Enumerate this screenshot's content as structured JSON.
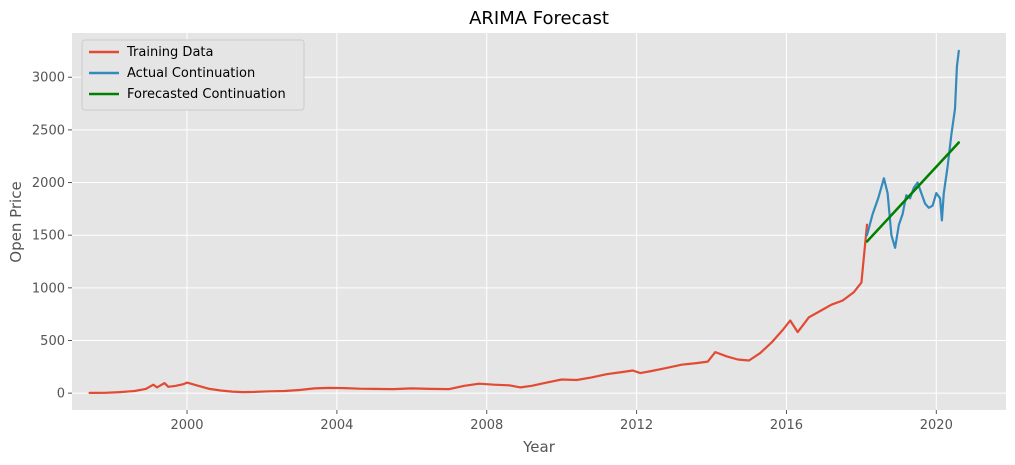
{
  "chart_data": {
    "type": "line",
    "title": "ARIMA Forecast",
    "xlabel": "Year",
    "ylabel": "Open Price",
    "xlim": [
      1996.93,
      2021.86
    ],
    "ylim": [
      -160,
      3420
    ],
    "x_ticks": [
      2000,
      2004,
      2008,
      2012,
      2016,
      2020
    ],
    "y_ticks": [
      0,
      500,
      1000,
      1500,
      2000,
      2500,
      3000
    ],
    "grid": true,
    "legend_position": "upper-left",
    "series": [
      {
        "name": "Training Data",
        "color": "#E24A33",
        "x": [
          1997.4,
          1997.8,
          1998.2,
          1998.6,
          1998.9,
          1999.1,
          1999.2,
          1999.4,
          1999.5,
          1999.7,
          1999.9,
          2000.0,
          2000.3,
          2000.6,
          2000.9,
          2001.2,
          2001.5,
          2001.8,
          2002.2,
          2002.6,
          2003.0,
          2003.4,
          2003.8,
          2004.2,
          2004.6,
          2005.0,
          2005.5,
          2006.0,
          2006.5,
          2007.0,
          2007.4,
          2007.8,
          2008.2,
          2008.6,
          2008.9,
          2009.2,
          2009.6,
          2010.0,
          2010.4,
          2010.8,
          2011.2,
          2011.6,
          2011.9,
          2012.1,
          2012.4,
          2012.8,
          2013.2,
          2013.6,
          2013.9,
          2014.1,
          2014.4,
          2014.7,
          2015.0,
          2015.3,
          2015.6,
          2015.9,
          2016.1,
          2016.3,
          2016.6,
          2016.9,
          2017.2,
          2017.5,
          2017.8,
          2018.0,
          2018.15
        ],
        "y": [
          2,
          3,
          10,
          20,
          40,
          80,
          55,
          95,
          60,
          70,
          85,
          100,
          70,
          40,
          25,
          15,
          10,
          12,
          18,
          20,
          30,
          45,
          50,
          48,
          42,
          40,
          38,
          45,
          40,
          38,
          70,
          90,
          80,
          75,
          55,
          70,
          100,
          130,
          125,
          150,
          180,
          200,
          215,
          190,
          210,
          240,
          270,
          285,
          300,
          390,
          350,
          320,
          310,
          380,
          480,
          600,
          690,
          580,
          720,
          780,
          840,
          880,
          960,
          1050,
          1600
        ]
      },
      {
        "name": "Actual Continuation",
        "color": "#348ABD",
        "x": [
          2018.15,
          2018.3,
          2018.45,
          2018.6,
          2018.7,
          2018.75,
          2018.8,
          2018.9,
          2019.0,
          2019.1,
          2019.2,
          2019.3,
          2019.4,
          2019.5,
          2019.6,
          2019.7,
          2019.8,
          2019.9,
          2020.0,
          2020.1,
          2020.15,
          2020.2,
          2020.3,
          2020.4,
          2020.5,
          2020.55,
          2020.6
        ],
        "y": [
          1500,
          1700,
          1850,
          2040,
          1900,
          1700,
          1500,
          1380,
          1600,
          1700,
          1880,
          1850,
          1950,
          2000,
          1900,
          1800,
          1760,
          1780,
          1900,
          1850,
          1640,
          1900,
          2150,
          2450,
          2700,
          3100,
          3250
        ]
      },
      {
        "name": "Forecasted Continuation",
        "color": "#008000",
        "x": [
          2018.15,
          2020.6
        ],
        "y": [
          1440,
          2380
        ]
      }
    ]
  }
}
